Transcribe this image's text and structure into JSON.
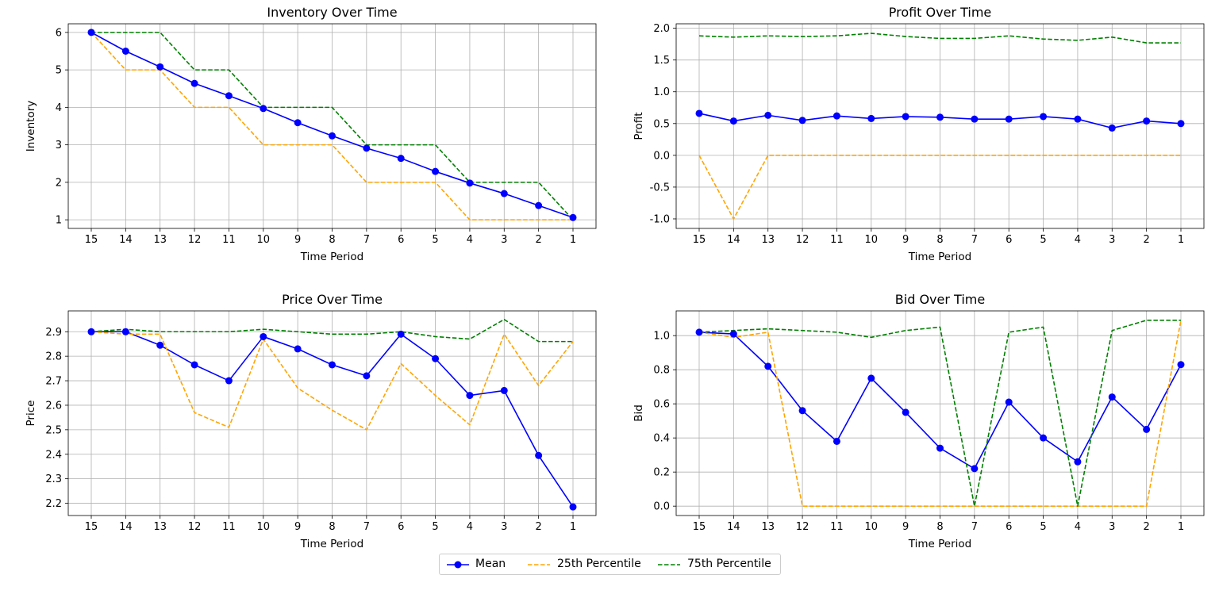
{
  "legend": {
    "mean": "Mean",
    "p25": "25th Percentile",
    "p75": "75th Percentile"
  },
  "colors": {
    "mean": "#0000ff",
    "p25": "#ffa500",
    "p75": "#008000"
  },
  "chart_data": [
    {
      "type": "line",
      "title": "Inventory Over Time",
      "xlabel": "Time Period",
      "ylabel": "Inventory",
      "categories": [
        "15",
        "14",
        "13",
        "12",
        "11",
        "10",
        "9",
        "8",
        "7",
        "6",
        "5",
        "4",
        "3",
        "2",
        "1"
      ],
      "ylim": [
        0.77,
        6.23
      ],
      "yticks": [
        1,
        2,
        3,
        4,
        5,
        6
      ],
      "ytick_decimals": 0,
      "grid": true,
      "series": [
        {
          "name": "Mean",
          "style": "solid-markers",
          "values": [
            6.0,
            5.5,
            5.08,
            4.64,
            4.31,
            3.97,
            3.59,
            3.24,
            2.91,
            2.64,
            2.29,
            1.98,
            1.7,
            1.38,
            1.06
          ]
        },
        {
          "name": "25th Percentile",
          "style": "dashed",
          "values": [
            6,
            5,
            5,
            4,
            4,
            3,
            3,
            3,
            2,
            2,
            2,
            1,
            1,
            1,
            1
          ]
        },
        {
          "name": "75th Percentile",
          "style": "dashed",
          "values": [
            6,
            6,
            6,
            5,
            5,
            4,
            4,
            4,
            3,
            3,
            3,
            2,
            2,
            2,
            1
          ]
        }
      ]
    },
    {
      "type": "line",
      "title": "Profit Over Time",
      "xlabel": "Time Period",
      "ylabel": "Profit",
      "categories": [
        "15",
        "14",
        "13",
        "12",
        "11",
        "10",
        "9",
        "8",
        "7",
        "6",
        "5",
        "4",
        "3",
        "2",
        "1"
      ],
      "ylim": [
        -1.15,
        2.07
      ],
      "yticks": [
        -1.0,
        -0.5,
        0.0,
        0.5,
        1.0,
        1.5,
        2.0
      ],
      "ytick_decimals": 1,
      "grid": true,
      "series": [
        {
          "name": "Mean",
          "style": "solid-markers",
          "values": [
            0.66,
            0.54,
            0.63,
            0.55,
            0.62,
            0.58,
            0.61,
            0.6,
            0.57,
            0.57,
            0.61,
            0.57,
            0.43,
            0.54,
            0.5
          ]
        },
        {
          "name": "25th Percentile",
          "style": "dashed",
          "values": [
            0.0,
            -1.0,
            0.0,
            0.0,
            0.0,
            0.0,
            0.0,
            0.0,
            0.0,
            0.0,
            0.0,
            0.0,
            0.0,
            0.0,
            0.0
          ]
        },
        {
          "name": "75th Percentile",
          "style": "dashed",
          "values": [
            1.88,
            1.86,
            1.88,
            1.87,
            1.88,
            1.92,
            1.87,
            1.84,
            1.84,
            1.88,
            1.83,
            1.81,
            1.86,
            1.77,
            1.77
          ]
        }
      ]
    },
    {
      "type": "line",
      "title": "Price Over Time",
      "xlabel": "Time Period",
      "ylabel": "Price",
      "categories": [
        "15",
        "14",
        "13",
        "12",
        "11",
        "10",
        "9",
        "8",
        "7",
        "6",
        "5",
        "4",
        "3",
        "2",
        "1"
      ],
      "ylim": [
        2.15,
        2.985
      ],
      "yticks": [
        2.2,
        2.3,
        2.4,
        2.5,
        2.6,
        2.7,
        2.8,
        2.9
      ],
      "ytick_decimals": 1,
      "grid": true,
      "series": [
        {
          "name": "Mean",
          "style": "solid-markers",
          "values": [
            2.9,
            2.9,
            2.845,
            2.765,
            2.7,
            2.88,
            2.83,
            2.765,
            2.72,
            2.89,
            2.79,
            2.64,
            2.66,
            2.395,
            2.185
          ]
        },
        {
          "name": "25th Percentile",
          "style": "dashed",
          "values": [
            2.9,
            2.89,
            2.89,
            2.57,
            2.51,
            2.87,
            2.67,
            2.58,
            2.5,
            2.77,
            2.64,
            2.52,
            2.89,
            2.68,
            2.86
          ]
        },
        {
          "name": "75th Percentile",
          "style": "dashed",
          "values": [
            2.9,
            2.91,
            2.9,
            2.9,
            2.9,
            2.91,
            2.9,
            2.89,
            2.89,
            2.9,
            2.88,
            2.87,
            2.95,
            2.86,
            2.86
          ]
        }
      ]
    },
    {
      "type": "line",
      "title": "Bid Over Time",
      "xlabel": "Time Period",
      "ylabel": "Bid",
      "categories": [
        "15",
        "14",
        "13",
        "12",
        "11",
        "10",
        "9",
        "8",
        "7",
        "6",
        "5",
        "4",
        "3",
        "2",
        "1"
      ],
      "ylim": [
        -0.055,
        1.145
      ],
      "yticks": [
        0.0,
        0.2,
        0.4,
        0.6,
        0.8,
        1.0
      ],
      "ytick_decimals": 1,
      "grid": true,
      "series": [
        {
          "name": "Mean",
          "style": "solid-markers",
          "values": [
            1.02,
            1.01,
            0.82,
            0.56,
            0.38,
            0.75,
            0.55,
            0.34,
            0.22,
            0.61,
            0.4,
            0.26,
            0.64,
            0.45,
            0.83
          ]
        },
        {
          "name": "25th Percentile",
          "style": "dashed",
          "values": [
            1.02,
            0.99,
            1.02,
            0.0,
            0.0,
            0.0,
            0.0,
            0.0,
            0.0,
            0.0,
            0.0,
            0.0,
            0.0,
            0.0,
            1.09
          ]
        },
        {
          "name": "75th Percentile",
          "style": "dashed",
          "values": [
            1.02,
            1.03,
            1.04,
            1.03,
            1.02,
            0.99,
            1.03,
            1.05,
            0.0,
            1.02,
            1.05,
            0.0,
            1.03,
            1.09,
            1.09
          ]
        }
      ]
    }
  ]
}
